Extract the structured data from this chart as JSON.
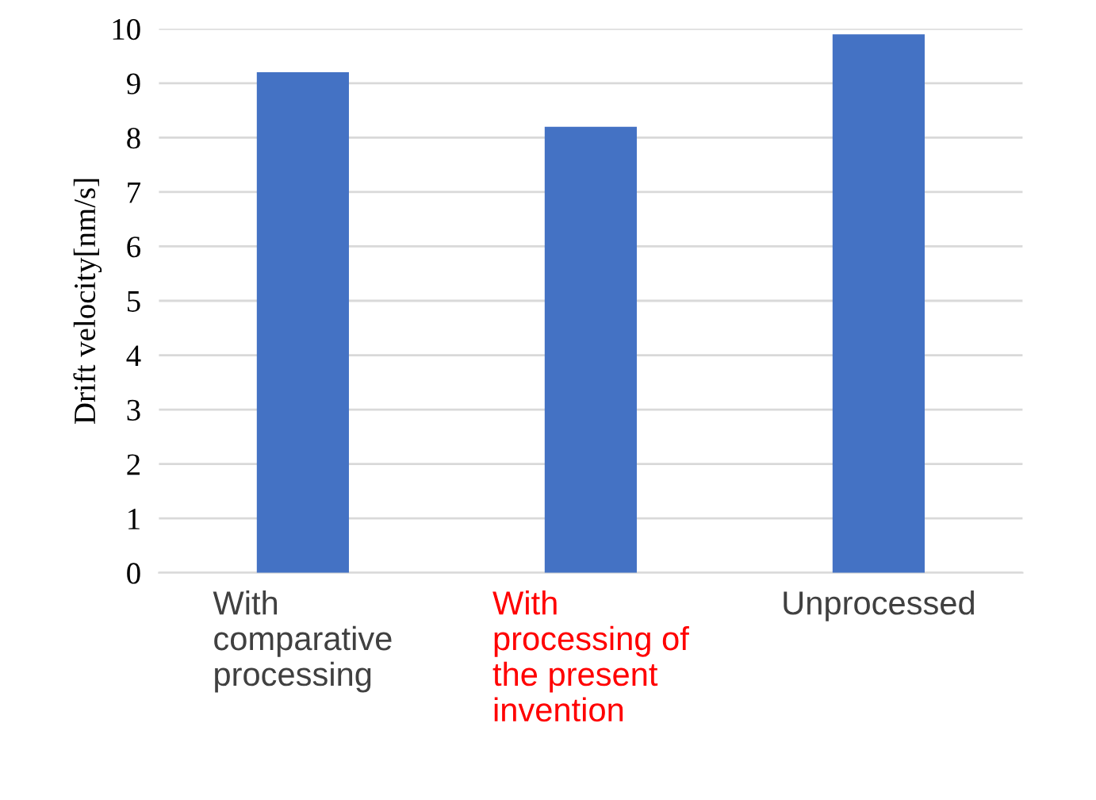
{
  "chart_data": {
    "type": "bar",
    "ylabel": "Drift velocity[nm/s]",
    "categories": [
      "With\ncomparative\nprocessing",
      "With\nprocessing of\nthe present\ninvention",
      "Unprocessed"
    ],
    "values": [
      9.2,
      8.2,
      9.9
    ],
    "color": "#4472c4",
    "ylim": [
      0,
      10
    ],
    "yticks": [
      0,
      1,
      2,
      3,
      4,
      5,
      6,
      7,
      8,
      9,
      10
    ],
    "grid": "y",
    "legend": false
  }
}
